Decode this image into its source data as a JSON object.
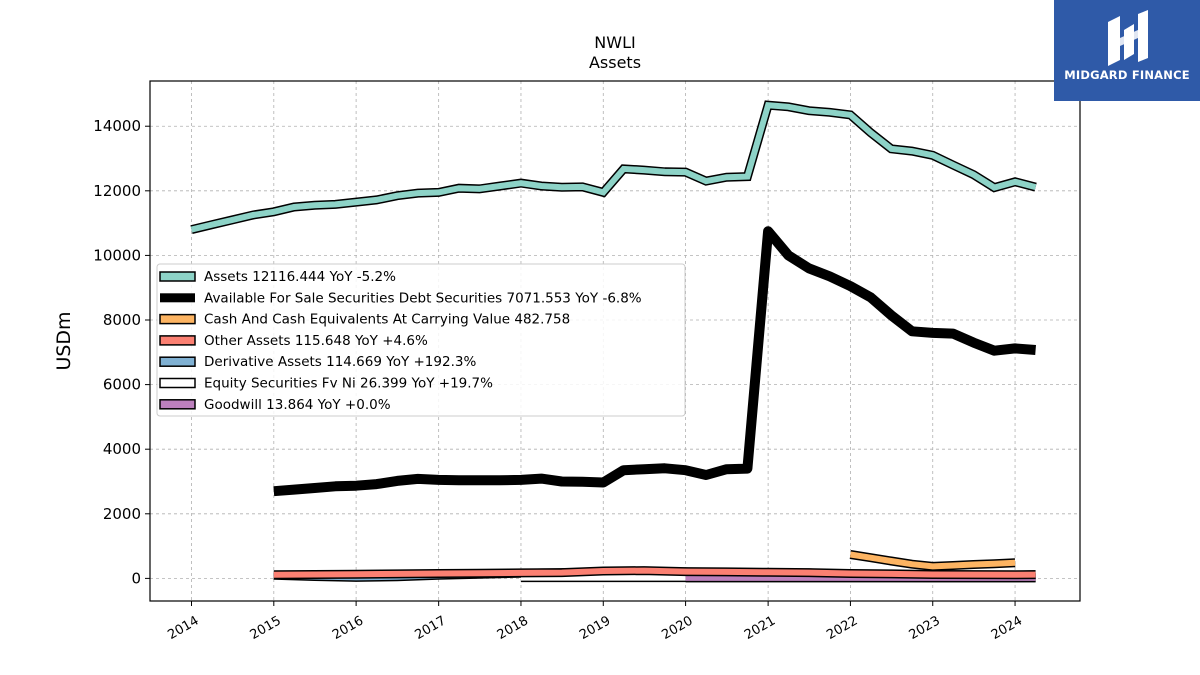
{
  "chart_data": {
    "type": "line",
    "title": "NWLI",
    "subtitle": "Assets",
    "ylabel": "USDm",
    "xlabel": "",
    "xlim": [
      "2013-07-01",
      "2024-10-15"
    ],
    "ylim": [
      -700,
      15400
    ],
    "x_ticks": [
      "2014",
      "2015",
      "2016",
      "2017",
      "2018",
      "2019",
      "2020",
      "2021",
      "2022",
      "2023",
      "2024"
    ],
    "y_ticks": [
      0,
      2000,
      4000,
      6000,
      8000,
      10000,
      12000,
      14000
    ],
    "grid": true,
    "legend_position": "center-left",
    "series": [
      {
        "name": "Assets",
        "legend": "Assets  12116.444 YoY -5.2%",
        "color": "#8dd3c7",
        "style": "outlined-band",
        "x": [
          "2014-01-01",
          "2014-04-01",
          "2014-07-01",
          "2014-10-01",
          "2015-01-01",
          "2015-04-01",
          "2015-07-01",
          "2015-10-01",
          "2016-01-01",
          "2016-04-01",
          "2016-07-01",
          "2016-10-01",
          "2017-01-01",
          "2017-04-01",
          "2017-07-01",
          "2017-10-01",
          "2018-01-01",
          "2018-04-01",
          "2018-07-01",
          "2018-10-01",
          "2019-01-01",
          "2019-04-01",
          "2019-07-01",
          "2019-10-01",
          "2020-01-01",
          "2020-04-01",
          "2020-07-01",
          "2020-10-01",
          "2021-01-01",
          "2021-04-01",
          "2021-07-01",
          "2021-10-01",
          "2022-01-01",
          "2022-04-01",
          "2022-07-01",
          "2022-10-01",
          "2023-01-01",
          "2023-04-01",
          "2023-07-01",
          "2023-10-01",
          "2024-01-01",
          "2024-04-01"
        ],
        "values": [
          10800,
          10950,
          11100,
          11250,
          11350,
          11500,
          11550,
          11580,
          11650,
          11720,
          11850,
          11930,
          11950,
          12080,
          12060,
          12150,
          12240,
          12150,
          12110,
          12120,
          11950,
          12680,
          12640,
          12590,
          12580,
          12300,
          12420,
          12440,
          14650,
          14600,
          14480,
          14430,
          14350,
          13800,
          13300,
          13230,
          13100,
          12800,
          12500,
          12100,
          12280,
          12116
        ]
      },
      {
        "name": "Available For Sale Securities Debt Securities",
        "legend": "Available For Sale Securities Debt Securities  7071.553 YoY -6.8%",
        "color": "#000000",
        "style": "thick-line",
        "x": [
          "2015-01-01",
          "2015-04-01",
          "2015-07-01",
          "2015-10-01",
          "2016-01-01",
          "2016-04-01",
          "2016-07-01",
          "2016-10-01",
          "2017-01-01",
          "2017-04-01",
          "2017-07-01",
          "2017-10-01",
          "2018-01-01",
          "2018-04-01",
          "2018-07-01",
          "2018-10-01",
          "2019-01-01",
          "2019-04-01",
          "2019-07-01",
          "2019-10-01",
          "2020-01-01",
          "2020-04-01",
          "2020-07-01",
          "2020-10-01",
          "2021-01-01",
          "2021-04-01",
          "2021-07-01",
          "2021-10-01",
          "2022-01-01",
          "2022-04-01",
          "2022-07-01",
          "2022-10-01",
          "2023-01-01",
          "2023-04-01",
          "2023-07-01",
          "2023-10-01",
          "2024-01-01",
          "2024-04-01"
        ],
        "values": [
          2700,
          2750,
          2800,
          2850,
          2870,
          2920,
          3020,
          3080,
          3050,
          3040,
          3040,
          3040,
          3050,
          3090,
          3000,
          2990,
          2970,
          3350,
          3380,
          3410,
          3350,
          3200,
          3380,
          3400,
          10750,
          10000,
          9600,
          9350,
          9050,
          8700,
          8150,
          7650,
          7600,
          7580,
          7300,
          7050,
          7120,
          7071
        ]
      },
      {
        "name": "Cash And Cash Equivalents At Carrying Value",
        "legend": "Cash And Cash Equivalents At Carrying Value  482.758",
        "color": "#fdb462",
        "style": "outlined-band",
        "x": [
          "2022-01-01",
          "2022-04-01",
          "2022-07-01",
          "2022-10-01",
          "2023-01-01",
          "2023-04-01",
          "2023-07-01",
          "2023-10-01",
          "2024-01-01"
        ],
        "values": [
          740,
          640,
          540,
          440,
          370,
          400,
          430,
          455,
          483
        ]
      },
      {
        "name": "Other Assets",
        "legend": "Other Assets  115.648 YoY +4.6%",
        "color": "#fb8072",
        "style": "outlined-band",
        "x": [
          "2015-01-01",
          "2015-07-01",
          "2016-01-01",
          "2016-07-01",
          "2017-01-01",
          "2017-07-01",
          "2018-01-01",
          "2018-07-01",
          "2019-01-01",
          "2019-07-01",
          "2020-01-01",
          "2020-07-01",
          "2021-01-01",
          "2021-07-01",
          "2022-01-01",
          "2022-07-01",
          "2023-01-01",
          "2023-07-01",
          "2024-01-01",
          "2024-04-01"
        ],
        "values": [
          110,
          120,
          130,
          140,
          150,
          160,
          170,
          180,
          230,
          240,
          210,
          200,
          190,
          180,
          150,
          140,
          120,
          118,
          115,
          116
        ]
      },
      {
        "name": "Derivative Assets",
        "legend": "Derivative Assets  114.669 YoY +192.3%",
        "color": "#80b1d3",
        "style": "outlined-band",
        "x": [
          "2015-01-01",
          "2015-07-01",
          "2016-01-01",
          "2016-07-01",
          "2017-01-01",
          "2017-07-01",
          "2018-01-01",
          "2018-07-01",
          "2019-01-01",
          "2019-07-01",
          "2020-01-01",
          "2020-07-01",
          "2021-01-01",
          "2021-07-01",
          "2022-01-01",
          "2022-07-01",
          "2023-01-01",
          "2023-07-01",
          "2024-01-01",
          "2024-04-01"
        ],
        "values": [
          100,
          60,
          30,
          50,
          100,
          130,
          160,
          180,
          170,
          160,
          200,
          140,
          160,
          170,
          130,
          60,
          50,
          60,
          100,
          115
        ]
      },
      {
        "name": "Equity Securities Fv Ni",
        "legend": "Equity Securities Fv Ni  26.399 YoY +19.7%",
        "color": "#ffffff",
        "style": "outlined-band",
        "x": [
          "2018-01-01",
          "2018-07-01",
          "2019-01-01",
          "2019-07-01",
          "2020-01-01",
          "2020-07-01",
          "2021-01-01",
          "2021-07-01",
          "2022-01-01",
          "2022-07-01",
          "2023-01-01",
          "2023-07-01",
          "2024-01-01",
          "2024-04-01"
        ],
        "values": [
          25,
          25,
          26,
          25,
          24,
          23,
          24,
          25,
          24,
          23,
          22,
          22,
          22,
          26
        ]
      },
      {
        "name": "Goodwill",
        "legend": "Goodwill  13.864 YoY +0.0%",
        "color": "#bc80bd",
        "style": "outlined-band",
        "x": [
          "2020-01-01",
          "2021-01-01",
          "2022-01-01",
          "2023-01-01",
          "2024-01-01",
          "2024-04-01"
        ],
        "values": [
          13.864,
          13.864,
          13.864,
          13.864,
          13.864,
          13.864
        ]
      }
    ]
  },
  "branding": {
    "logo_text": "MIDGARD FINANCE",
    "logo_color": "#2f5aa8"
  }
}
